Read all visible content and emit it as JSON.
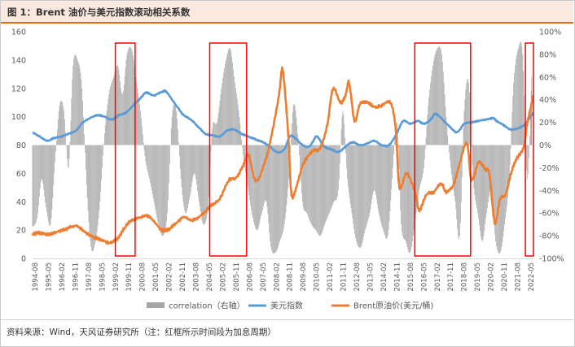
{
  "figure": {
    "title": "图 1：Brent 油价与美元指数滚动相关系数",
    "source": "资料来源：Wind，天风证券研究所（注：红框所示时间段为加息周期）"
  },
  "colors": {
    "dxy": "#5b9bd5",
    "brent": "#ed7d31",
    "corr": "#a6a6a6",
    "highlight": "#ff0000",
    "title_accent": "#e46c0a"
  },
  "chart_data": {
    "type": "line",
    "title": "Brent 油价与美元指数滚动相关系数",
    "x_ticks": [
      "1994-08",
      "1995-05",
      "1996-02",
      "1996-11",
      "1997-08",
      "1998-05",
      "1999-02",
      "1999-11",
      "2000-08",
      "2001-05",
      "2002-02",
      "2002-11",
      "2003-08",
      "2004-05",
      "2005-02",
      "2005-11",
      "2006-08",
      "2007-05",
      "2008-02",
      "2008-11",
      "2009-08",
      "2010-05",
      "2011-02",
      "2011-11",
      "2012-08",
      "2013-05",
      "2014-02",
      "2014-11",
      "2015-08",
      "2016-05",
      "2017-02",
      "2017-11",
      "2018-08",
      "2019-05",
      "2020-02",
      "2020-11",
      "2021-08",
      "2022-05"
    ],
    "y_left": {
      "min": 0,
      "max": 160,
      "ticks": [
        "0",
        "20",
        "40",
        "60",
        "80",
        "100",
        "120",
        "140",
        "160"
      ]
    },
    "y_right": {
      "min": -100,
      "max": 100,
      "ticks": [
        "-100%",
        "-80%",
        "-60%",
        "-40%",
        "-20%",
        "0%",
        "20%",
        "40%",
        "60%",
        "80%",
        "100%"
      ]
    },
    "series": [
      {
        "name": "correlation（右轴）",
        "type": "bar",
        "axis": "right",
        "x": [
          1994.6,
          1994.85,
          1995.1,
          1995.35,
          1995.6,
          1995.85,
          1996.1,
          1996.35,
          1996.6,
          1996.85,
          1997.1,
          1997.35,
          1997.6,
          1997.85,
          1998.1,
          1998.35,
          1998.6,
          1998.85,
          1999.1,
          1999.35,
          1999.6,
          1999.85,
          2000.1,
          2000.35,
          2000.6,
          2000.85,
          2001.1,
          2001.35,
          2001.6,
          2001.85,
          2002.1,
          2002.35,
          2002.6,
          2002.85,
          2003.1,
          2003.35,
          2003.6,
          2003.85,
          2004.1,
          2004.35,
          2004.6,
          2004.85,
          2005.1,
          2005.35,
          2005.6,
          2005.85,
          2006.1,
          2006.35,
          2006.6,
          2006.85,
          2007.1,
          2007.35,
          2007.6,
          2007.85,
          2008.1,
          2008.35,
          2008.6,
          2008.85,
          2009.1,
          2009.35,
          2009.6,
          2009.85,
          2010.1,
          2010.35,
          2010.6,
          2010.85,
          2011.1,
          2011.35,
          2011.6,
          2011.85,
          2012.1,
          2012.35,
          2012.6,
          2012.85,
          2013.1,
          2013.35,
          2013.6,
          2013.85,
          2014.1,
          2014.35,
          2014.6,
          2014.85,
          2015.1,
          2015.35,
          2015.6,
          2015.85,
          2016.1,
          2016.35,
          2016.6,
          2016.85,
          2017.1,
          2017.35,
          2017.6,
          2017.85,
          2018.1,
          2018.35,
          2018.6,
          2018.85,
          2019.1,
          2019.35,
          2019.6,
          2019.85,
          2020.1,
          2020.35,
          2020.6,
          2020.85,
          2021.1,
          2021.35,
          2021.6,
          2021.85,
          2022.1,
          2022.35
        ],
        "values": [
          -0.72,
          -0.65,
          -0.3,
          -0.55,
          -0.7,
          -0.15,
          0.35,
          0.3,
          -0.2,
          0.7,
          0.75,
          0.5,
          -0.35,
          -0.9,
          -0.85,
          -0.5,
          0.1,
          0.45,
          0.6,
          0.7,
          0.45,
          0.8,
          0.85,
          0.6,
          0.3,
          -0.1,
          -0.3,
          -0.5,
          -0.7,
          -0.8,
          -0.6,
          0.25,
          0.3,
          -0.3,
          -0.6,
          -0.45,
          -0.25,
          -0.5,
          -0.7,
          -0.55,
          0.15,
          0.2,
          0.5,
          0.75,
          0.85,
          0.55,
          0.25,
          -0.15,
          -0.4,
          -0.65,
          -0.75,
          -0.6,
          -0.5,
          -0.9,
          -0.95,
          -0.85,
          -0.7,
          -0.3,
          0.35,
          0.1,
          -0.5,
          -0.6,
          -0.7,
          -0.75,
          -0.8,
          -0.7,
          -0.6,
          -0.5,
          -0.4,
          0.3,
          -0.3,
          -0.6,
          -0.85,
          -0.9,
          -0.75,
          -0.6,
          -0.4,
          -0.6,
          -0.75,
          -0.8,
          -0.3,
          0.2,
          -0.7,
          -0.85,
          -0.95,
          -0.7,
          -0.4,
          -0.2,
          0.35,
          0.7,
          0.85,
          0.8,
          0.25,
          -0.2,
          -0.5,
          -0.8,
          0.3,
          0.55,
          -0.3,
          -0.6,
          -0.85,
          -0.6,
          -0.4,
          -0.85,
          -0.95,
          -0.7,
          -0.3,
          0.55,
          0.85,
          0.8,
          -0.3,
          0.6
        ]
      },
      {
        "name": "美元指数",
        "type": "line",
        "axis": "left",
        "x": [
          1994.6,
          1995.0,
          1995.4,
          1995.8,
          1996.2,
          1996.6,
          1997.0,
          1997.4,
          1997.8,
          1998.2,
          1998.6,
          1999.0,
          1999.4,
          1999.8,
          2000.2,
          2000.6,
          2000.9,
          2001.3,
          2001.7,
          2002.0,
          2002.3,
          2002.7,
          2003.0,
          2003.4,
          2003.8,
          2004.2,
          2004.6,
          2005.0,
          2005.4,
          2005.8,
          2006.2,
          2006.6,
          2007.0,
          2007.4,
          2007.8,
          2008.2,
          2008.6,
          2008.9,
          2009.2,
          2009.6,
          2010.0,
          2010.4,
          2010.8,
          2011.2,
          2011.6,
          2012.0,
          2012.4,
          2012.8,
          2013.2,
          2013.6,
          2014.0,
          2014.4,
          2014.8,
          2015.2,
          2015.6,
          2016.0,
          2016.4,
          2016.8,
          2017.0,
          2017.4,
          2017.8,
          2018.2,
          2018.6,
          2019.0,
          2019.4,
          2019.8,
          2020.2,
          2020.4,
          2020.8,
          2021.2,
          2021.6,
          2022.0,
          2022.45
        ],
        "values": [
          89,
          86,
          83,
          85,
          86,
          88,
          90,
          96,
          99,
          101,
          100,
          98,
          101,
          103,
          108,
          113,
          117,
          115,
          117,
          118,
          113,
          106,
          101,
          98,
          93,
          88,
          87,
          86,
          90,
          91,
          88,
          86,
          84,
          82,
          79,
          75,
          77,
          86,
          85,
          80,
          79,
          86,
          79,
          77,
          75,
          79,
          82,
          80,
          81,
          83,
          80,
          80,
          87,
          97,
          95,
          97,
          95,
          99,
          102,
          98,
          93,
          89,
          95,
          96,
          97,
          98,
          99,
          97,
          94,
          91,
          92,
          95,
          103
        ]
      },
      {
        "name": "Brent原油价(美元/桶)",
        "type": "line",
        "axis": "left",
        "x": [
          1994.6,
          1995.0,
          1995.5,
          1996.0,
          1996.5,
          1997.0,
          1997.5,
          1998.0,
          1998.5,
          1998.9,
          1999.3,
          1999.7,
          2000.0,
          2000.4,
          2000.9,
          2001.3,
          2001.8,
          2002.2,
          2002.6,
          2003.0,
          2003.5,
          2004.0,
          2004.5,
          2005.0,
          2005.5,
          2005.9,
          2006.3,
          2006.6,
          2007.0,
          2007.5,
          2007.9,
          2008.3,
          2008.5,
          2008.8,
          2009.0,
          2009.3,
          2009.7,
          2010.2,
          2010.6,
          2011.0,
          2011.3,
          2011.7,
          2012.0,
          2012.2,
          2012.5,
          2012.8,
          2013.2,
          2013.6,
          2014.0,
          2014.5,
          2014.8,
          2015.0,
          2015.4,
          2015.9,
          2016.1,
          2016.5,
          2016.9,
          2017.3,
          2017.6,
          2018.0,
          2018.3,
          2018.75,
          2019.0,
          2019.4,
          2019.8,
          2020.0,
          2020.3,
          2020.6,
          2020.9,
          2021.2,
          2021.5,
          2021.9,
          2022.1,
          2022.45
        ],
        "values": [
          17,
          18,
          17,
          19,
          21,
          23,
          19,
          15,
          13,
          11,
          14,
          21,
          26,
          28,
          30,
          27,
          20,
          21,
          25,
          29,
          27,
          31,
          37,
          42,
          55,
          57,
          65,
          73,
          55,
          67,
          88,
          115,
          133,
          90,
          45,
          52,
          68,
          76,
          78,
          95,
          120,
          110,
          115,
          124,
          97,
          109,
          110,
          107,
          108,
          110,
          90,
          50,
          60,
          45,
          34,
          45,
          47,
          53,
          47,
          52,
          65,
          81,
          55,
          68,
          62,
          60,
          25,
          42,
          45,
          60,
          70,
          78,
          95,
          115
        ]
      }
    ],
    "highlights": [
      {
        "from": 1999.2,
        "to": 2000.3
      },
      {
        "from": 2004.45,
        "to": 2006.5
      },
      {
        "from": 2015.85,
        "to": 2018.95
      },
      {
        "from": 2022.0,
        "to": 2022.45
      }
    ],
    "legend": {
      "position": "bottom",
      "items": [
        "correlation（右轴）",
        "美元指数",
        "Brent原油价(美元/桶)"
      ]
    }
  }
}
